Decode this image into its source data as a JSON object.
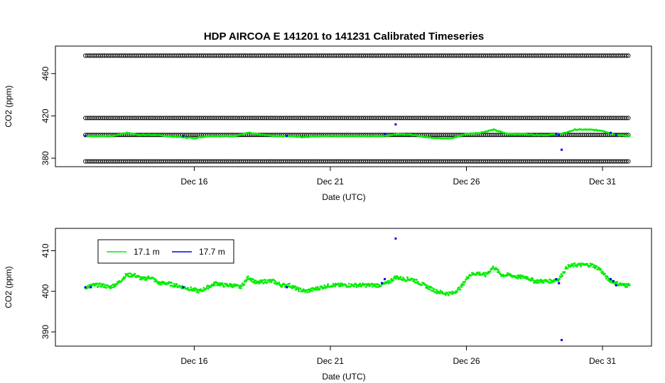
{
  "title": "HDP   AIRCOA  E    141201  to  141231   Calibrated Timeseries",
  "colors": {
    "series_a": "#00ee00",
    "series_b": "#0000ee",
    "reference": "#000000"
  },
  "chart_data": [
    {
      "type": "scatter",
      "title": "HDP   AIRCOA  E    141201  to  141231   Calibrated Timeseries",
      "xlabel": "Date (UTC)",
      "ylabel": "CO2 (ppm)",
      "x_ticks": [
        "Dec 16",
        "Dec 21",
        "Dec 26",
        "Dec 31"
      ],
      "x_tick_values": [
        16,
        21,
        26,
        31
      ],
      "y_ticks": [
        "380",
        "420",
        "460"
      ],
      "y_tick_values": [
        380,
        420,
        460
      ],
      "xlim": [
        10.9,
        32.8
      ],
      "ylim": [
        372,
        486
      ],
      "grid": false,
      "series": [
        {
          "marker": "open-circle",
          "color": "#000000",
          "x_range": [
            12.0,
            32.0
          ],
          "levels": [
            477,
            418,
            402,
            377
          ]
        },
        {
          "color": "#00ee00",
          "x": [
            12.0,
            12.5,
            13.0,
            13.5,
            14.0,
            14.5,
            15.0,
            15.5,
            16.0,
            16.5,
            17.0,
            17.5,
            18.0,
            18.5,
            19.0,
            19.5,
            20.0,
            20.5,
            21.0,
            21.5,
            22.0,
            22.5,
            23.0,
            23.5,
            24.0,
            24.5,
            25.0,
            25.5,
            26.0,
            26.5,
            27.0,
            27.5,
            28.0,
            28.5,
            29.0,
            29.5,
            30.0,
            30.5,
            31.0,
            31.5,
            32.0
          ],
          "y": [
            401,
            401,
            401,
            404,
            402,
            402,
            401,
            400,
            399,
            401,
            401,
            401,
            404,
            402,
            401,
            401,
            400,
            401,
            401,
            401,
            401,
            401,
            401,
            403,
            402,
            400,
            399,
            399,
            403,
            404,
            407,
            403,
            403,
            402,
            402,
            403,
            407,
            407,
            406,
            402,
            401
          ]
        },
        {
          "color": "#0000ee",
          "x": [
            12.0,
            15.6,
            19.4,
            23.0,
            23.4,
            29.3,
            29.4,
            29.5,
            31.3,
            31.5
          ],
          "y": [
            401,
            401,
            401,
            403,
            412,
            403,
            402,
            388,
            404,
            402
          ]
        }
      ]
    },
    {
      "type": "scatter",
      "xlabel": "Date (UTC)",
      "ylabel": "CO2 (ppm)",
      "x_ticks": [
        "Dec 16",
        "Dec 21",
        "Dec 26",
        "Dec 31"
      ],
      "x_tick_values": [
        16,
        21,
        26,
        31
      ],
      "y_ticks": [
        "390",
        "400",
        "410"
      ],
      "y_tick_values": [
        390,
        400,
        410
      ],
      "xlim": [
        10.9,
        32.8
      ],
      "ylim": [
        386.5,
        415.5
      ],
      "grid": false,
      "legend": {
        "placement": "top-left",
        "entries": [
          "17.1 m",
          "17.7 m"
        ]
      },
      "series": [
        {
          "name": "17.1 m",
          "color": "#00ee00",
          "x": [
            12.0,
            12.3,
            12.6,
            12.9,
            13.2,
            13.5,
            13.8,
            14.1,
            14.4,
            14.7,
            15.0,
            15.3,
            15.6,
            15.9,
            16.2,
            16.5,
            16.8,
            17.1,
            17.4,
            17.7,
            18.0,
            18.3,
            18.6,
            18.9,
            19.2,
            19.5,
            19.8,
            20.1,
            20.4,
            20.7,
            21.0,
            21.3,
            21.6,
            21.9,
            22.2,
            22.5,
            22.8,
            23.1,
            23.4,
            23.7,
            24.0,
            24.3,
            24.6,
            24.9,
            25.2,
            25.5,
            25.8,
            26.1,
            26.4,
            26.7,
            27.0,
            27.3,
            27.6,
            27.9,
            28.2,
            28.5,
            28.8,
            29.1,
            29.4,
            29.7,
            30.0,
            30.3,
            30.6,
            30.9,
            31.2,
            31.5,
            31.8,
            32.0
          ],
          "y": [
            401,
            401.5,
            401.5,
            401,
            402,
            404,
            404,
            403,
            403.5,
            402,
            402,
            401.5,
            401,
            400.5,
            400,
            401,
            402,
            401.5,
            401.5,
            401,
            403.5,
            402,
            402.5,
            402.5,
            401.5,
            401.5,
            400.5,
            400,
            400.5,
            401,
            401.5,
            401.5,
            401.5,
            401.5,
            401.5,
            401.5,
            401.5,
            402,
            403.5,
            403,
            403,
            402,
            401,
            400,
            399.5,
            399.5,
            401,
            404,
            404.5,
            404,
            406,
            404,
            404,
            403.5,
            403.5,
            402.5,
            402.5,
            402.5,
            403,
            406,
            406.5,
            406.5,
            406.5,
            405.5,
            403,
            402,
            401.5,
            401.5
          ]
        },
        {
          "name": "17.7 m",
          "color": "#0000ee",
          "x": [
            12.0,
            12.2,
            15.6,
            19.4,
            22.9,
            23.0,
            23.4,
            29.3,
            29.4,
            29.5,
            31.3,
            31.4,
            31.5
          ],
          "y": [
            401,
            401,
            401,
            401,
            402,
            403,
            413,
            403,
            402,
            388,
            403,
            402.5,
            401.5
          ]
        }
      ]
    }
  ]
}
